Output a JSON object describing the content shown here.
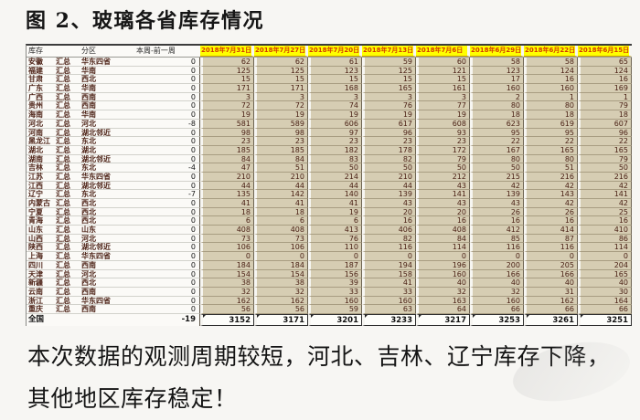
{
  "title": "图 2、玻璃各省库存情况",
  "table": {
    "headers": {
      "inventory": "库存",
      "region": "分区",
      "diff": "本周-前一周"
    },
    "date_headers": [
      "2018年7月31日",
      "2018年7月27日",
      "2018年7月20日",
      "2018年7月13日",
      "2018年7月6日",
      "2018年6月29日",
      "2018年6月22日",
      "2018年6月15日"
    ],
    "rows": [
      {
        "province": "安徽",
        "suffix": "汇总",
        "region": "华东四省",
        "diff": "0",
        "values": [
          62,
          62,
          61,
          59,
          60,
          58,
          58,
          65
        ]
      },
      {
        "province": "福建",
        "suffix": "汇总",
        "region": "华南",
        "diff": "0",
        "values": [
          125,
          125,
          123,
          125,
          121,
          123,
          124,
          124
        ]
      },
      {
        "province": "甘肃",
        "suffix": "汇总",
        "region": "西北",
        "diff": "0",
        "values": [
          15,
          15,
          15,
          15,
          15,
          17,
          16,
          16
        ]
      },
      {
        "province": "广东",
        "suffix": "汇总",
        "region": "华南",
        "diff": "0",
        "values": [
          171,
          171,
          168,
          165,
          161,
          160,
          160,
          169
        ]
      },
      {
        "province": "广西",
        "suffix": "汇总",
        "region": "西南",
        "diff": "0",
        "values": [
          3,
          3,
          3,
          3,
          3,
          2,
          1,
          1
        ]
      },
      {
        "province": "贵州",
        "suffix": "汇总",
        "region": "西南",
        "diff": "0",
        "values": [
          72,
          72,
          74,
          76,
          77,
          80,
          80,
          79
        ]
      },
      {
        "province": "海南",
        "suffix": "汇总",
        "region": "华南",
        "diff": "0",
        "values": [
          19,
          19,
          19,
          19,
          19,
          18,
          18,
          18
        ]
      },
      {
        "province": "河北",
        "suffix": "汇总",
        "region": "河北",
        "diff": "-8",
        "values": [
          581,
          589,
          606,
          617,
          608,
          623,
          619,
          607
        ]
      },
      {
        "province": "河南",
        "suffix": "汇总",
        "region": "湖北邻近",
        "diff": "0",
        "values": [
          98,
          98,
          97,
          96,
          93,
          95,
          95,
          96
        ]
      },
      {
        "province": "黑龙江",
        "suffix": "汇总",
        "region": "东北",
        "diff": "0",
        "values": [
          23,
          23,
          23,
          23,
          23,
          22,
          22,
          22
        ]
      },
      {
        "province": "湖北",
        "suffix": "汇总",
        "region": "湖北",
        "diff": "0",
        "values": [
          185,
          185,
          182,
          178,
          172,
          167,
          165,
          165
        ]
      },
      {
        "province": "湖南",
        "suffix": "汇总",
        "region": "湖北邻近",
        "diff": "0",
        "values": [
          84,
          84,
          83,
          82,
          79,
          80,
          80,
          79
        ]
      },
      {
        "province": "吉林",
        "suffix": "汇总",
        "region": "东北",
        "diff": "-4",
        "values": [
          47,
          51,
          50,
          50,
          50,
          50,
          51,
          50
        ]
      },
      {
        "province": "江苏",
        "suffix": "汇总",
        "region": "华东四省",
        "diff": "0",
        "values": [
          210,
          210,
          214,
          210,
          212,
          215,
          216,
          216
        ]
      },
      {
        "province": "江西",
        "suffix": "汇总",
        "region": "湖北邻近",
        "diff": "0",
        "values": [
          44,
          44,
          44,
          44,
          43,
          42,
          42,
          42
        ]
      },
      {
        "province": "辽宁",
        "suffix": "汇总",
        "region": "东北",
        "diff": "-7",
        "values": [
          135,
          142,
          140,
          139,
          141,
          139,
          143,
          141
        ]
      },
      {
        "province": "内蒙古",
        "suffix": "汇总",
        "region": "西北",
        "diff": "0",
        "values": [
          41,
          41,
          41,
          43,
          43,
          43,
          42,
          42
        ]
      },
      {
        "province": "宁夏",
        "suffix": "汇总",
        "region": "西北",
        "diff": "0",
        "values": [
          18,
          18,
          19,
          20,
          20,
          26,
          26,
          25
        ]
      },
      {
        "province": "青海",
        "suffix": "汇总",
        "region": "西北",
        "diff": "0",
        "values": [
          6,
          6,
          6,
          16,
          16,
          16,
          16,
          16
        ]
      },
      {
        "province": "山东",
        "suffix": "汇总",
        "region": "山东",
        "diff": "0",
        "values": [
          408,
          408,
          413,
          406,
          408,
          412,
          414,
          410
        ]
      },
      {
        "province": "山西",
        "suffix": "汇总",
        "region": "河北",
        "diff": "0",
        "values": [
          73,
          73,
          76,
          82,
          84,
          85,
          87,
          86
        ]
      },
      {
        "province": "陕西",
        "suffix": "汇总",
        "region": "湖北邻近",
        "diff": "0",
        "values": [
          106,
          106,
          110,
          116,
          114,
          116,
          116,
          114
        ]
      },
      {
        "province": "上海",
        "suffix": "汇总",
        "region": "华东四省",
        "diff": "0",
        "values": [
          0,
          0,
          0,
          0,
          0,
          0,
          0,
          0
        ]
      },
      {
        "province": "四川",
        "suffix": "汇总",
        "region": "西南",
        "diff": "0",
        "values": [
          184,
          184,
          187,
          194,
          196,
          200,
          205,
          204
        ]
      },
      {
        "province": "天津",
        "suffix": "汇总",
        "region": "河北",
        "diff": "0",
        "values": [
          154,
          154,
          156,
          158,
          160,
          166,
          166,
          165
        ]
      },
      {
        "province": "新疆",
        "suffix": "汇总",
        "region": "西北",
        "diff": "0",
        "values": [
          38,
          38,
          39,
          41,
          40,
          40,
          40,
          40
        ]
      },
      {
        "province": "云南",
        "suffix": "汇总",
        "region": "西南",
        "diff": "0",
        "values": [
          32,
          32,
          33,
          33,
          32,
          32,
          31,
          30
        ]
      },
      {
        "province": "浙江",
        "suffix": "汇总",
        "region": "华东四省",
        "diff": "0",
        "values": [
          162,
          162,
          160,
          160,
          163,
          160,
          162,
          164
        ]
      },
      {
        "province": "重庆",
        "suffix": "汇总",
        "region": "西南",
        "diff": "0",
        "values": [
          56,
          56,
          59,
          63,
          64,
          66,
          66,
          66
        ]
      }
    ],
    "total_row": {
      "label": "全国",
      "diff": "-19",
      "values": [
        3152,
        3171,
        3201,
        3233,
        3217,
        3253,
        3261,
        3251
      ]
    }
  },
  "footer": {
    "text": "本次数据的观测周期较短，河北、吉林、辽宁库存下降，其他地区库存稳定！"
  },
  "colors": {
    "header_bg": "#ffff00",
    "header_text": "#d43a00",
    "cell_bg": "#d6cdb3",
    "cell_text": "#4a2115"
  }
}
